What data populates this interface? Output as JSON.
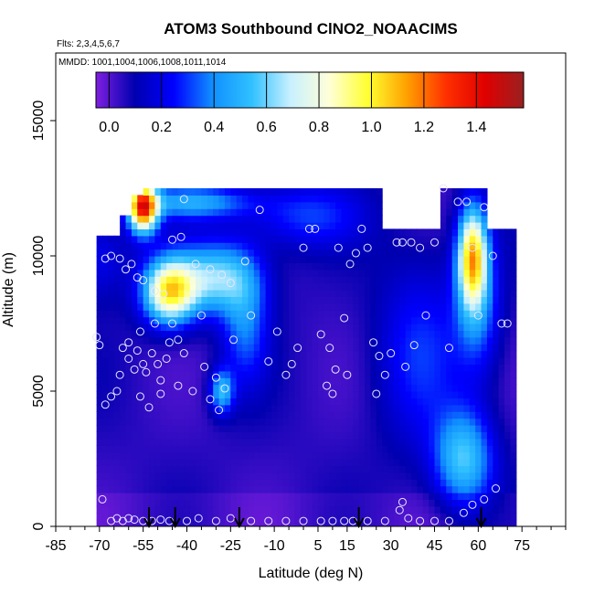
{
  "chart_data": {
    "type": "heatmap",
    "title": "ATOM3 Southbound ClNO2_NOAACIMS",
    "flights_label": "Flts: 2,3,4,5,6,7",
    "mmdd_label": "MMDD: 1001,1004,1006,1008,1011,1014",
    "xlabel": "Latitude (deg N)",
    "ylabel": "Altitude (m)",
    "xlim": [
      -85,
      90
    ],
    "ylim": [
      0,
      17500
    ],
    "x_ticks": [
      "-85",
      "-70",
      "-55",
      "-40",
      "-25",
      "-10",
      "5",
      "15",
      "30",
      "45",
      "60",
      "75"
    ],
    "x_tick_values": [
      -85,
      -70,
      -55,
      -40,
      -25,
      -10,
      5,
      15,
      30,
      45,
      60,
      75
    ],
    "y_ticks": [
      "0",
      "5000",
      "10000",
      "15000"
    ],
    "y_tick_values": [
      0,
      5000,
      10000,
      15000
    ],
    "colorbar": {
      "ticks": [
        "0.0",
        "0.2",
        "0.4",
        "0.6",
        "0.8",
        "1.0",
        "1.2",
        "1.4"
      ],
      "tick_values": [
        0.0,
        0.2,
        0.4,
        0.6,
        0.8,
        1.0,
        1.2,
        1.4
      ],
      "range": [
        -0.05,
        1.58
      ],
      "colors": [
        "#7f1fe0",
        "#0000b0",
        "#0000ff",
        "#1090ff",
        "#30c0ff",
        "#c8f0ff",
        "#ffffd8",
        "#ffff30",
        "#ffa000",
        "#ff3000",
        "#e00000",
        "#9a2020"
      ]
    },
    "field_extent": {
      "x": [
        -71,
        72
      ],
      "y": [
        0,
        12500
      ]
    },
    "background_value": 0.05,
    "features": [
      {
        "lat": -55,
        "alt": 11800,
        "value": 1.25,
        "dx": 5,
        "dy": 900
      },
      {
        "lat": -46,
        "alt": 8700,
        "value": 0.9,
        "dx": 9,
        "dy": 1200
      },
      {
        "lat": -30,
        "alt": 9200,
        "value": 0.55,
        "dx": 14,
        "dy": 1300
      },
      {
        "lat": -38,
        "alt": 12000,
        "value": 0.4,
        "dx": 20,
        "dy": 600
      },
      {
        "lat": -20,
        "alt": 7500,
        "value": 0.3,
        "dx": 8,
        "dy": 2200
      },
      {
        "lat": -28,
        "alt": 5000,
        "value": 0.45,
        "dx": 4,
        "dy": 800
      },
      {
        "lat": 58,
        "alt": 10000,
        "value": 0.95,
        "dx": 5,
        "dy": 1800
      },
      {
        "lat": 55,
        "alt": 2500,
        "value": 0.5,
        "dx": 10,
        "dy": 1800
      },
      {
        "lat": 60,
        "alt": 8000,
        "value": 0.3,
        "dx": 8,
        "dy": 2500
      },
      {
        "lat": 40,
        "alt": 6500,
        "value": 0.22,
        "dx": 15,
        "dy": 3500
      },
      {
        "lat": -70,
        "alt": 10000,
        "value": 0.18,
        "dx": 10,
        "dy": 1500
      },
      {
        "lat": 0,
        "alt": 11500,
        "value": 0.25,
        "dx": 20,
        "dy": 1200
      }
    ],
    "profile_points": [
      [
        -71,
        7000
      ],
      [
        -70,
        6700
      ],
      [
        -68,
        4500
      ],
      [
        -66,
        4800
      ],
      [
        -64,
        5000
      ],
      [
        -63,
        5600
      ],
      [
        -62,
        6600
      ],
      [
        -60,
        6800
      ],
      [
        -58,
        5800
      ],
      [
        -57,
        6500
      ],
      [
        -56,
        7200
      ],
      [
        -55,
        6000
      ],
      [
        -54,
        5700
      ],
      [
        -53,
        4400
      ],
      [
        -52,
        6400
      ],
      [
        -51,
        7500
      ],
      [
        -50,
        6000
      ],
      [
        -49,
        4900
      ],
      [
        -47,
        6200
      ],
      [
        -46,
        6800
      ],
      [
        -45,
        7500
      ],
      [
        -43,
        5200
      ],
      [
        -41,
        6400
      ],
      [
        -38,
        5000
      ],
      [
        -35,
        7800
      ],
      [
        -32,
        4700
      ],
      [
        -30,
        5500
      ],
      [
        -27,
        5100
      ],
      [
        -24,
        6900
      ],
      [
        -20,
        9800
      ],
      [
        -18,
        7800
      ],
      [
        -15,
        11700
      ],
      [
        -12,
        6100
      ],
      [
        -9,
        7200
      ],
      [
        -6,
        5600
      ],
      [
        -4,
        6000
      ],
      [
        -2,
        6600
      ],
      [
        0,
        10300
      ],
      [
        2,
        11000
      ],
      [
        4,
        11000
      ],
      [
        6,
        7100
      ],
      [
        8,
        5200
      ],
      [
        9,
        6600
      ],
      [
        10,
        4900
      ],
      [
        11,
        5800
      ],
      [
        12,
        10300
      ],
      [
        14,
        7700
      ],
      [
        15,
        5600
      ],
      [
        16,
        9700
      ],
      [
        18,
        10100
      ],
      [
        20,
        11000
      ],
      [
        22,
        10300
      ],
      [
        24,
        6800
      ],
      [
        25,
        4900
      ],
      [
        26,
        6300
      ],
      [
        28,
        5600
      ],
      [
        30,
        6400
      ],
      [
        32,
        10500
      ],
      [
        34,
        10500
      ],
      [
        35,
        5900
      ],
      [
        37,
        10500
      ],
      [
        38,
        6700
      ],
      [
        40,
        10300
      ],
      [
        42,
        7800
      ],
      [
        45,
        10500
      ],
      [
        48,
        12500
      ],
      [
        50,
        6600
      ],
      [
        53,
        12000
      ],
      [
        56,
        12000
      ],
      [
        58,
        10300
      ],
      [
        60,
        7800
      ],
      [
        62,
        11800
      ],
      [
        65,
        10000
      ],
      [
        68,
        7500
      ],
      [
        -68,
        9900
      ],
      [
        -66,
        10000
      ],
      [
        -63,
        9900
      ],
      [
        -61,
        9500
      ],
      [
        -59,
        9700
      ],
      [
        -57,
        9200
      ],
      [
        -55,
        9100
      ],
      [
        -51,
        8700
      ],
      [
        -48,
        8600
      ],
      [
        -45,
        10600
      ],
      [
        -42,
        10700
      ],
      [
        -41,
        12100
      ],
      [
        -37,
        9700
      ],
      [
        -32,
        9500
      ],
      [
        -28,
        9300
      ],
      [
        -25,
        9000
      ],
      [
        -69,
        1000
      ],
      [
        -66,
        200
      ],
      [
        -64,
        300
      ],
      [
        -62,
        200
      ],
      [
        -60,
        300
      ],
      [
        -58,
        250
      ],
      [
        -55,
        200
      ],
      [
        -52,
        200
      ],
      [
        -49,
        250
      ],
      [
        -46,
        200
      ],
      [
        -40,
        200
      ],
      [
        -36,
        300
      ],
      [
        -30,
        200
      ],
      [
        -25,
        300
      ],
      [
        -18,
        200
      ],
      [
        -12,
        200
      ],
      [
        -6,
        200
      ],
      [
        0,
        200
      ],
      [
        6,
        200
      ],
      [
        10,
        200
      ],
      [
        14,
        200
      ],
      [
        17,
        200
      ],
      [
        22,
        200
      ],
      [
        28,
        200
      ],
      [
        33,
        600
      ],
      [
        34,
        900
      ],
      [
        36,
        300
      ],
      [
        40,
        200
      ],
      [
        45,
        200
      ],
      [
        50,
        200
      ],
      [
        55,
        500
      ],
      [
        58,
        800
      ],
      [
        62,
        1000
      ],
      [
        66,
        1400
      ],
      [
        70,
        7500
      ],
      [
        -60,
        6200
      ],
      [
        -56,
        4800
      ],
      [
        -49,
        5400
      ],
      [
        -43,
        6900
      ],
      [
        -34,
        5900
      ],
      [
        -29,
        4300
      ]
    ],
    "arrow_lats": [
      -53,
      -44,
      -22,
      19,
      61
    ]
  }
}
